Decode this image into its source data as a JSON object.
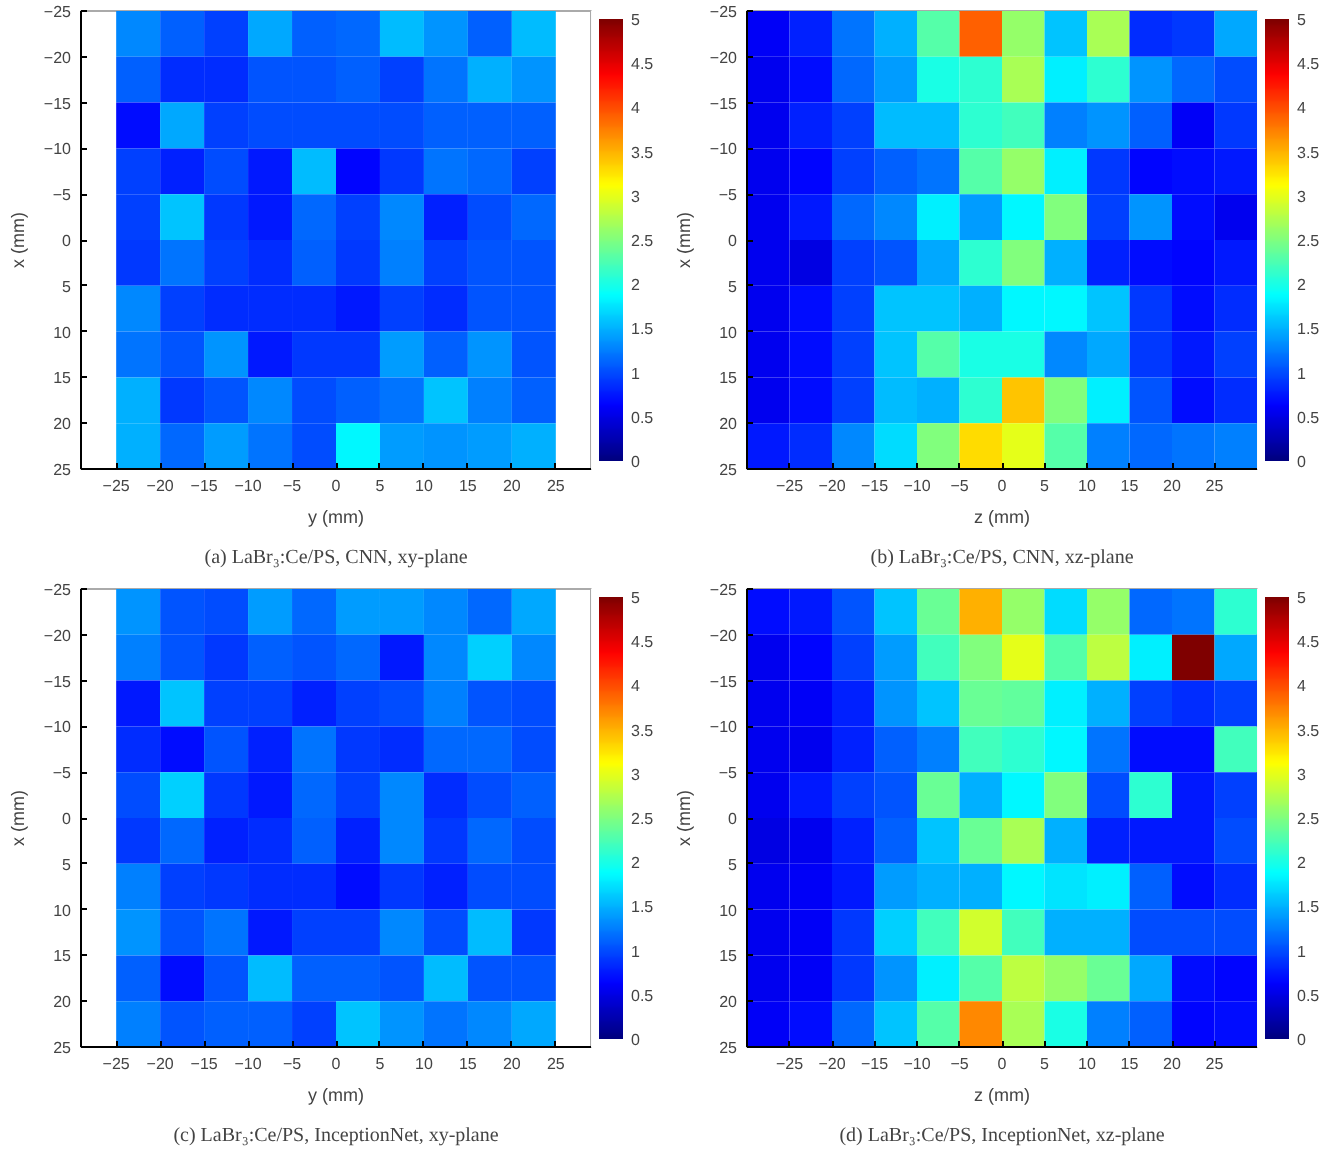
{
  "chart_data": [
    {
      "type": "heatmap",
      "title": "(a) LaBr₃:Ce/PS, CNN, xy-plane",
      "xlabel": "y (mm)",
      "ylabel": "x (mm)",
      "x": [
        -22.5,
        -17.5,
        -12.5,
        -7.5,
        -2.5,
        2.5,
        7.5,
        12.5,
        17.5,
        22.5
      ],
      "y": [
        -22.5,
        -17.5,
        -12.5,
        -7.5,
        -2.5,
        2.5,
        7.5,
        12.5,
        17.5,
        22.5
      ],
      "xlim": [
        -29,
        29
      ],
      "ylim": [
        25,
        -25
      ],
      "xticks": [
        -25,
        -20,
        -15,
        -10,
        -5,
        0,
        5,
        10,
        15,
        20,
        25
      ],
      "yticks": [
        -25,
        -20,
        -15,
        -10,
        -5,
        0,
        5,
        10,
        15,
        20,
        25
      ],
      "clim": [
        0,
        5
      ],
      "cticks": [
        0,
        0.5,
        1,
        1.5,
        2,
        2.5,
        3,
        3.5,
        4,
        4.5,
        5
      ],
      "cells": [
        [
          1.3,
          1.1,
          0.95,
          1.45,
          1.1,
          1.15,
          1.55,
          1.35,
          1.1,
          1.55
        ],
        [
          1.1,
          0.85,
          0.85,
          1.05,
          1.05,
          1.1,
          0.95,
          1.2,
          1.5,
          1.35
        ],
        [
          0.7,
          1.45,
          0.95,
          1.0,
          1.0,
          1.0,
          1.0,
          1.1,
          1.1,
          1.1
        ],
        [
          0.95,
          0.8,
          1.0,
          0.75,
          1.55,
          0.65,
          0.9,
          1.2,
          1.15,
          0.95
        ],
        [
          0.95,
          1.6,
          0.9,
          0.75,
          1.15,
          0.95,
          1.3,
          0.8,
          1.0,
          1.15
        ],
        [
          0.9,
          1.2,
          0.95,
          0.85,
          1.1,
          0.9,
          1.25,
          0.95,
          1.05,
          1.05
        ],
        [
          1.3,
          0.95,
          0.85,
          0.85,
          0.85,
          0.75,
          0.95,
          0.85,
          1.05,
          1.05
        ],
        [
          1.2,
          1.05,
          1.35,
          0.75,
          0.9,
          0.9,
          1.4,
          1.1,
          1.35,
          1.05
        ],
        [
          1.5,
          0.9,
          1.05,
          1.3,
          1.0,
          1.1,
          1.2,
          1.6,
          1.25,
          1.1
        ],
        [
          1.5,
          1.15,
          1.4,
          1.2,
          1.0,
          1.85,
          1.4,
          1.35,
          1.4,
          1.5
        ]
      ]
    },
    {
      "type": "heatmap",
      "title": "(b) LaBr₃:Ce/PS, CNN, xz-plane",
      "xlabel": "z (mm)",
      "ylabel": "x (mm)",
      "x": [
        -27.5,
        -22.5,
        -17.5,
        -12.5,
        -7.5,
        -2.5,
        2.5,
        7.5,
        12.5,
        17.5,
        22.5,
        27.5
      ],
      "y": [
        -22.5,
        -17.5,
        -12.5,
        -7.5,
        -2.5,
        2.5,
        7.5,
        12.5,
        17.5,
        22.5
      ],
      "xlim": [
        -30,
        30
      ],
      "ylim": [
        25,
        -25
      ],
      "xticks": [
        -25,
        -20,
        -15,
        -10,
        -5,
        0,
        5,
        10,
        15,
        20,
        25
      ],
      "yticks": [
        -25,
        -20,
        -15,
        -10,
        -5,
        0,
        5,
        10,
        15,
        20,
        25
      ],
      "clim": [
        0,
        5
      ],
      "cticks": [
        0,
        0.5,
        1,
        1.5,
        2,
        2.5,
        3,
        3.5,
        4,
        4.5,
        5
      ],
      "cells": [
        [
          0.6,
          0.8,
          1.2,
          1.5,
          2.3,
          3.9,
          2.6,
          1.6,
          2.7,
          0.85,
          0.9,
          1.45
        ],
        [
          0.55,
          0.7,
          1.15,
          1.4,
          2.0,
          2.1,
          2.7,
          1.8,
          2.1,
          1.35,
          1.15,
          1.0
        ],
        [
          0.55,
          0.8,
          0.95,
          1.55,
          1.55,
          2.1,
          2.2,
          1.25,
          1.35,
          1.1,
          0.6,
          0.9
        ],
        [
          0.55,
          0.65,
          0.95,
          1.1,
          1.2,
          2.3,
          2.6,
          1.8,
          0.9,
          0.65,
          0.7,
          0.75
        ],
        [
          0.55,
          0.75,
          1.15,
          1.3,
          1.8,
          1.4,
          1.85,
          2.5,
          0.95,
          1.35,
          0.7,
          0.55
        ],
        [
          0.55,
          0.5,
          0.95,
          1.05,
          1.45,
          2.1,
          2.5,
          1.5,
          0.8,
          0.7,
          0.65,
          0.75
        ],
        [
          0.55,
          0.7,
          0.95,
          1.6,
          1.6,
          1.5,
          1.85,
          1.85,
          1.6,
          0.9,
          0.7,
          0.85
        ],
        [
          0.55,
          0.7,
          0.95,
          1.6,
          2.3,
          2.0,
          2.0,
          1.3,
          1.45,
          0.9,
          0.75,
          0.95
        ],
        [
          0.55,
          0.7,
          0.95,
          1.55,
          1.5,
          2.1,
          3.4,
          2.5,
          1.8,
          1.05,
          0.7,
          0.85
        ],
        [
          0.75,
          0.85,
          1.3,
          1.7,
          2.5,
          3.3,
          3.0,
          2.3,
          1.25,
          1.15,
          1.2,
          1.25
        ]
      ]
    },
    {
      "type": "heatmap",
      "title": "(c) LaBr₃:Ce/PS, InceptionNet, xy-plane",
      "xlabel": "y (mm)",
      "ylabel": "x (mm)",
      "x": [
        -22.5,
        -17.5,
        -12.5,
        -7.5,
        -2.5,
        2.5,
        7.5,
        12.5,
        17.5,
        22.5
      ],
      "y": [
        -22.5,
        -17.5,
        -12.5,
        -7.5,
        -2.5,
        2.5,
        7.5,
        12.5,
        17.5,
        22.5
      ],
      "xlim": [
        -29,
        29
      ],
      "ylim": [
        25,
        -25
      ],
      "xticks": [
        -25,
        -20,
        -15,
        -10,
        -5,
        0,
        5,
        10,
        15,
        20,
        25
      ],
      "yticks": [
        -25,
        -20,
        -15,
        -10,
        -5,
        0,
        5,
        10,
        15,
        20,
        25
      ],
      "clim": [
        0,
        5
      ],
      "cticks": [
        0,
        0.5,
        1,
        1.5,
        2,
        2.5,
        3,
        3.5,
        4,
        4.5,
        5
      ],
      "cells": [
        [
          1.35,
          1.05,
          1.0,
          1.4,
          1.15,
          1.4,
          1.4,
          1.3,
          1.15,
          1.45
        ],
        [
          1.25,
          1.05,
          0.9,
          1.1,
          1.05,
          1.15,
          0.75,
          1.3,
          1.65,
          1.3
        ],
        [
          0.75,
          1.6,
          0.95,
          0.95,
          0.8,
          0.95,
          1.0,
          1.25,
          1.05,
          1.0
        ],
        [
          0.85,
          0.7,
          1.05,
          0.8,
          1.2,
          0.9,
          0.85,
          1.15,
          1.15,
          1.0
        ],
        [
          1.0,
          1.65,
          0.9,
          0.75,
          1.15,
          0.95,
          1.3,
          0.85,
          1.0,
          1.1
        ],
        [
          0.9,
          1.15,
          0.8,
          0.85,
          1.1,
          0.8,
          1.3,
          0.9,
          1.15,
          1.0
        ],
        [
          1.25,
          0.95,
          0.9,
          0.85,
          0.85,
          0.7,
          0.9,
          0.8,
          1.0,
          1.0
        ],
        [
          1.35,
          1.05,
          1.2,
          0.75,
          0.95,
          0.95,
          1.3,
          1.0,
          1.55,
          0.9
        ],
        [
          1.1,
          0.7,
          1.05,
          1.55,
          1.1,
          1.1,
          1.05,
          1.55,
          1.05,
          1.05
        ],
        [
          1.25,
          1.05,
          1.1,
          1.1,
          0.95,
          1.6,
          1.35,
          1.2,
          1.3,
          1.45
        ]
      ]
    },
    {
      "type": "heatmap",
      "title": "(d) LaBr₃:Ce/PS, InceptionNet, xz-plane",
      "xlabel": "z (mm)",
      "ylabel": "x (mm)",
      "x": [
        -27.5,
        -22.5,
        -17.5,
        -12.5,
        -7.5,
        -2.5,
        2.5,
        7.5,
        12.5,
        17.5,
        22.5,
        27.5
      ],
      "y": [
        -22.5,
        -17.5,
        -12.5,
        -7.5,
        -2.5,
        2.5,
        7.5,
        12.5,
        17.5,
        22.5
      ],
      "xlim": [
        -30,
        30
      ],
      "ylim": [
        25,
        -25
      ],
      "xticks": [
        -25,
        -20,
        -15,
        -10,
        -5,
        0,
        5,
        10,
        15,
        20,
        25
      ],
      "yticks": [
        -25,
        -20,
        -15,
        -10,
        -5,
        0,
        5,
        10,
        15,
        20,
        25
      ],
      "clim": [
        0,
        5
      ],
      "cticks": [
        0,
        0.5,
        1,
        1.5,
        2,
        2.5,
        3,
        3.5,
        4,
        4.5,
        5
      ],
      "cells": [
        [
          0.7,
          0.75,
          1.05,
          1.6,
          2.4,
          3.5,
          2.6,
          1.7,
          2.6,
          1.15,
          1.2,
          2.1
        ],
        [
          0.55,
          0.65,
          0.95,
          1.4,
          2.2,
          2.5,
          3.0,
          2.3,
          2.8,
          1.8,
          5.0,
          1.45
        ],
        [
          0.55,
          0.6,
          0.8,
          1.35,
          1.6,
          2.4,
          2.35,
          1.8,
          1.5,
          0.95,
          0.85,
          0.95
        ],
        [
          0.55,
          0.55,
          0.8,
          1.1,
          1.25,
          2.2,
          2.1,
          1.85,
          1.2,
          0.7,
          0.7,
          2.2
        ],
        [
          0.55,
          0.75,
          0.95,
          1.05,
          2.4,
          1.5,
          1.85,
          2.5,
          1.0,
          2.1,
          0.75,
          0.95
        ],
        [
          0.5,
          0.55,
          0.8,
          1.1,
          1.6,
          2.4,
          2.7,
          1.5,
          0.8,
          0.75,
          0.75,
          1.0
        ],
        [
          0.55,
          0.6,
          0.75,
          1.4,
          1.5,
          1.5,
          1.85,
          1.75,
          1.8,
          1.1,
          0.7,
          0.85
        ],
        [
          0.55,
          0.6,
          0.9,
          1.65,
          2.2,
          2.9,
          2.2,
          1.5,
          1.5,
          1.0,
          1.0,
          1.0
        ],
        [
          0.55,
          0.6,
          0.9,
          1.35,
          1.8,
          2.3,
          2.8,
          2.6,
          2.4,
          1.45,
          0.7,
          0.65
        ],
        [
          0.6,
          0.7,
          1.15,
          1.6,
          2.3,
          3.7,
          2.7,
          2.0,
          1.25,
          1.1,
          0.65,
          0.7
        ]
      ]
    }
  ]
}
